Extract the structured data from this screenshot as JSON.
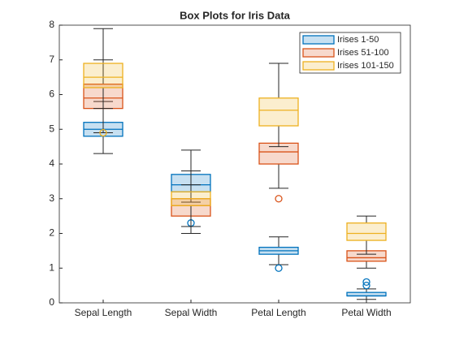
{
  "chart_data": {
    "type": "box",
    "title": "Box Plots for Iris Data",
    "categories": [
      "Sepal Length",
      "Sepal Width",
      "Petal Length",
      "Petal Width"
    ],
    "ylim": [
      0,
      8
    ],
    "yticks": [
      0,
      1,
      2,
      3,
      4,
      5,
      6,
      7,
      8
    ],
    "legend": "northeast",
    "series": [
      {
        "name": "Irises 1-50",
        "color": "#0072BD",
        "boxes": [
          {
            "low": 4.3,
            "q1": 4.8,
            "median": 5.0,
            "q3": 5.2,
            "high": 5.8
          },
          {
            "low": 2.9,
            "q1": 3.2,
            "median": 3.4,
            "q3": 3.7,
            "high": 4.4,
            "outliers": [
              2.3
            ]
          },
          {
            "low": 1.1,
            "q1": 1.4,
            "median": 1.5,
            "q3": 1.6,
            "high": 1.9,
            "outliers": [
              1.0
            ]
          },
          {
            "low": 0.1,
            "q1": 0.2,
            "median": 0.2,
            "q3": 0.3,
            "high": 0.4,
            "outliers": [
              0.5,
              0.6
            ]
          }
        ]
      },
      {
        "name": "Irises 51-100",
        "color": "#D95319",
        "boxes": [
          {
            "low": 4.9,
            "q1": 5.6,
            "median": 5.9,
            "q3": 6.3,
            "high": 7.0
          },
          {
            "low": 2.0,
            "q1": 2.5,
            "median": 2.8,
            "q3": 3.0,
            "high": 3.4
          },
          {
            "low": 3.3,
            "q1": 4.0,
            "median": 4.35,
            "q3": 4.6,
            "high": 5.1,
            "outliers": [
              3.0
            ]
          },
          {
            "low": 1.0,
            "q1": 1.2,
            "median": 1.3,
            "q3": 1.5,
            "high": 1.8
          }
        ]
      },
      {
        "name": "Irises 101-150",
        "color": "#EDB120",
        "boxes": [
          {
            "low": 5.6,
            "q1": 6.2,
            "median": 6.5,
            "q3": 6.9,
            "high": 7.9,
            "outliers": [
              4.9
            ]
          },
          {
            "low": 2.2,
            "q1": 2.8,
            "median": 3.0,
            "q3": 3.2,
            "high": 3.8
          },
          {
            "low": 4.5,
            "q1": 5.1,
            "median": 5.55,
            "q3": 5.9,
            "high": 6.9
          },
          {
            "low": 1.4,
            "q1": 1.8,
            "median": 2.0,
            "q3": 2.3,
            "high": 2.5
          }
        ]
      }
    ]
  }
}
